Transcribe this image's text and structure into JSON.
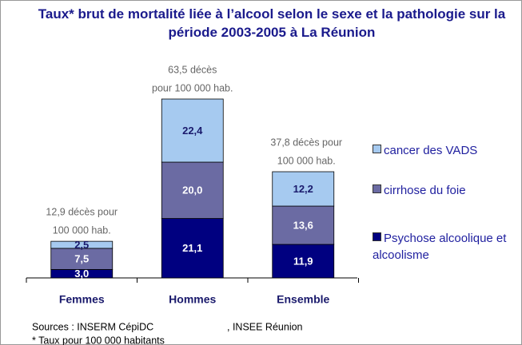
{
  "chart_data": {
    "type": "bar",
    "stacked": true,
    "title": "Taux* brut de mortalité liée à l’alcool selon le sexe et la pathologie sur la période 2003-2005 à La Réunion",
    "categories": [
      "Femmes",
      "Hommes",
      "Ensemble"
    ],
    "series": [
      {
        "name": "Psychose alcoolique et alcoolisme",
        "color": "#000080",
        "values": [
          3.0,
          21.1,
          11.9
        ],
        "value_labels": [
          "3,0",
          "21,1",
          "11,9"
        ]
      },
      {
        "name": "cirrhose du foie",
        "color": "#6b6ba3",
        "values": [
          7.5,
          20.0,
          13.6
        ],
        "value_labels": [
          "7,5",
          "20,0",
          "13,6"
        ]
      },
      {
        "name": "cancer des VADS",
        "color": "#a6caf0",
        "values": [
          2.5,
          22.4,
          12.2
        ],
        "value_labels": [
          "2,5",
          "22,4",
          "12,2"
        ]
      }
    ],
    "annotations": [
      [
        "12,9 décès pour",
        "100 000  hab."
      ],
      [
        "63,5 décès",
        "pour 100 000 hab."
      ],
      [
        "37,8 décès pour",
        "100 000 hab."
      ]
    ],
    "sources": [
      "Sources : INSERM CépiDC",
      ", INSEE Réunion"
    ],
    "footnote": "* Taux pour 100 000 habitants"
  }
}
